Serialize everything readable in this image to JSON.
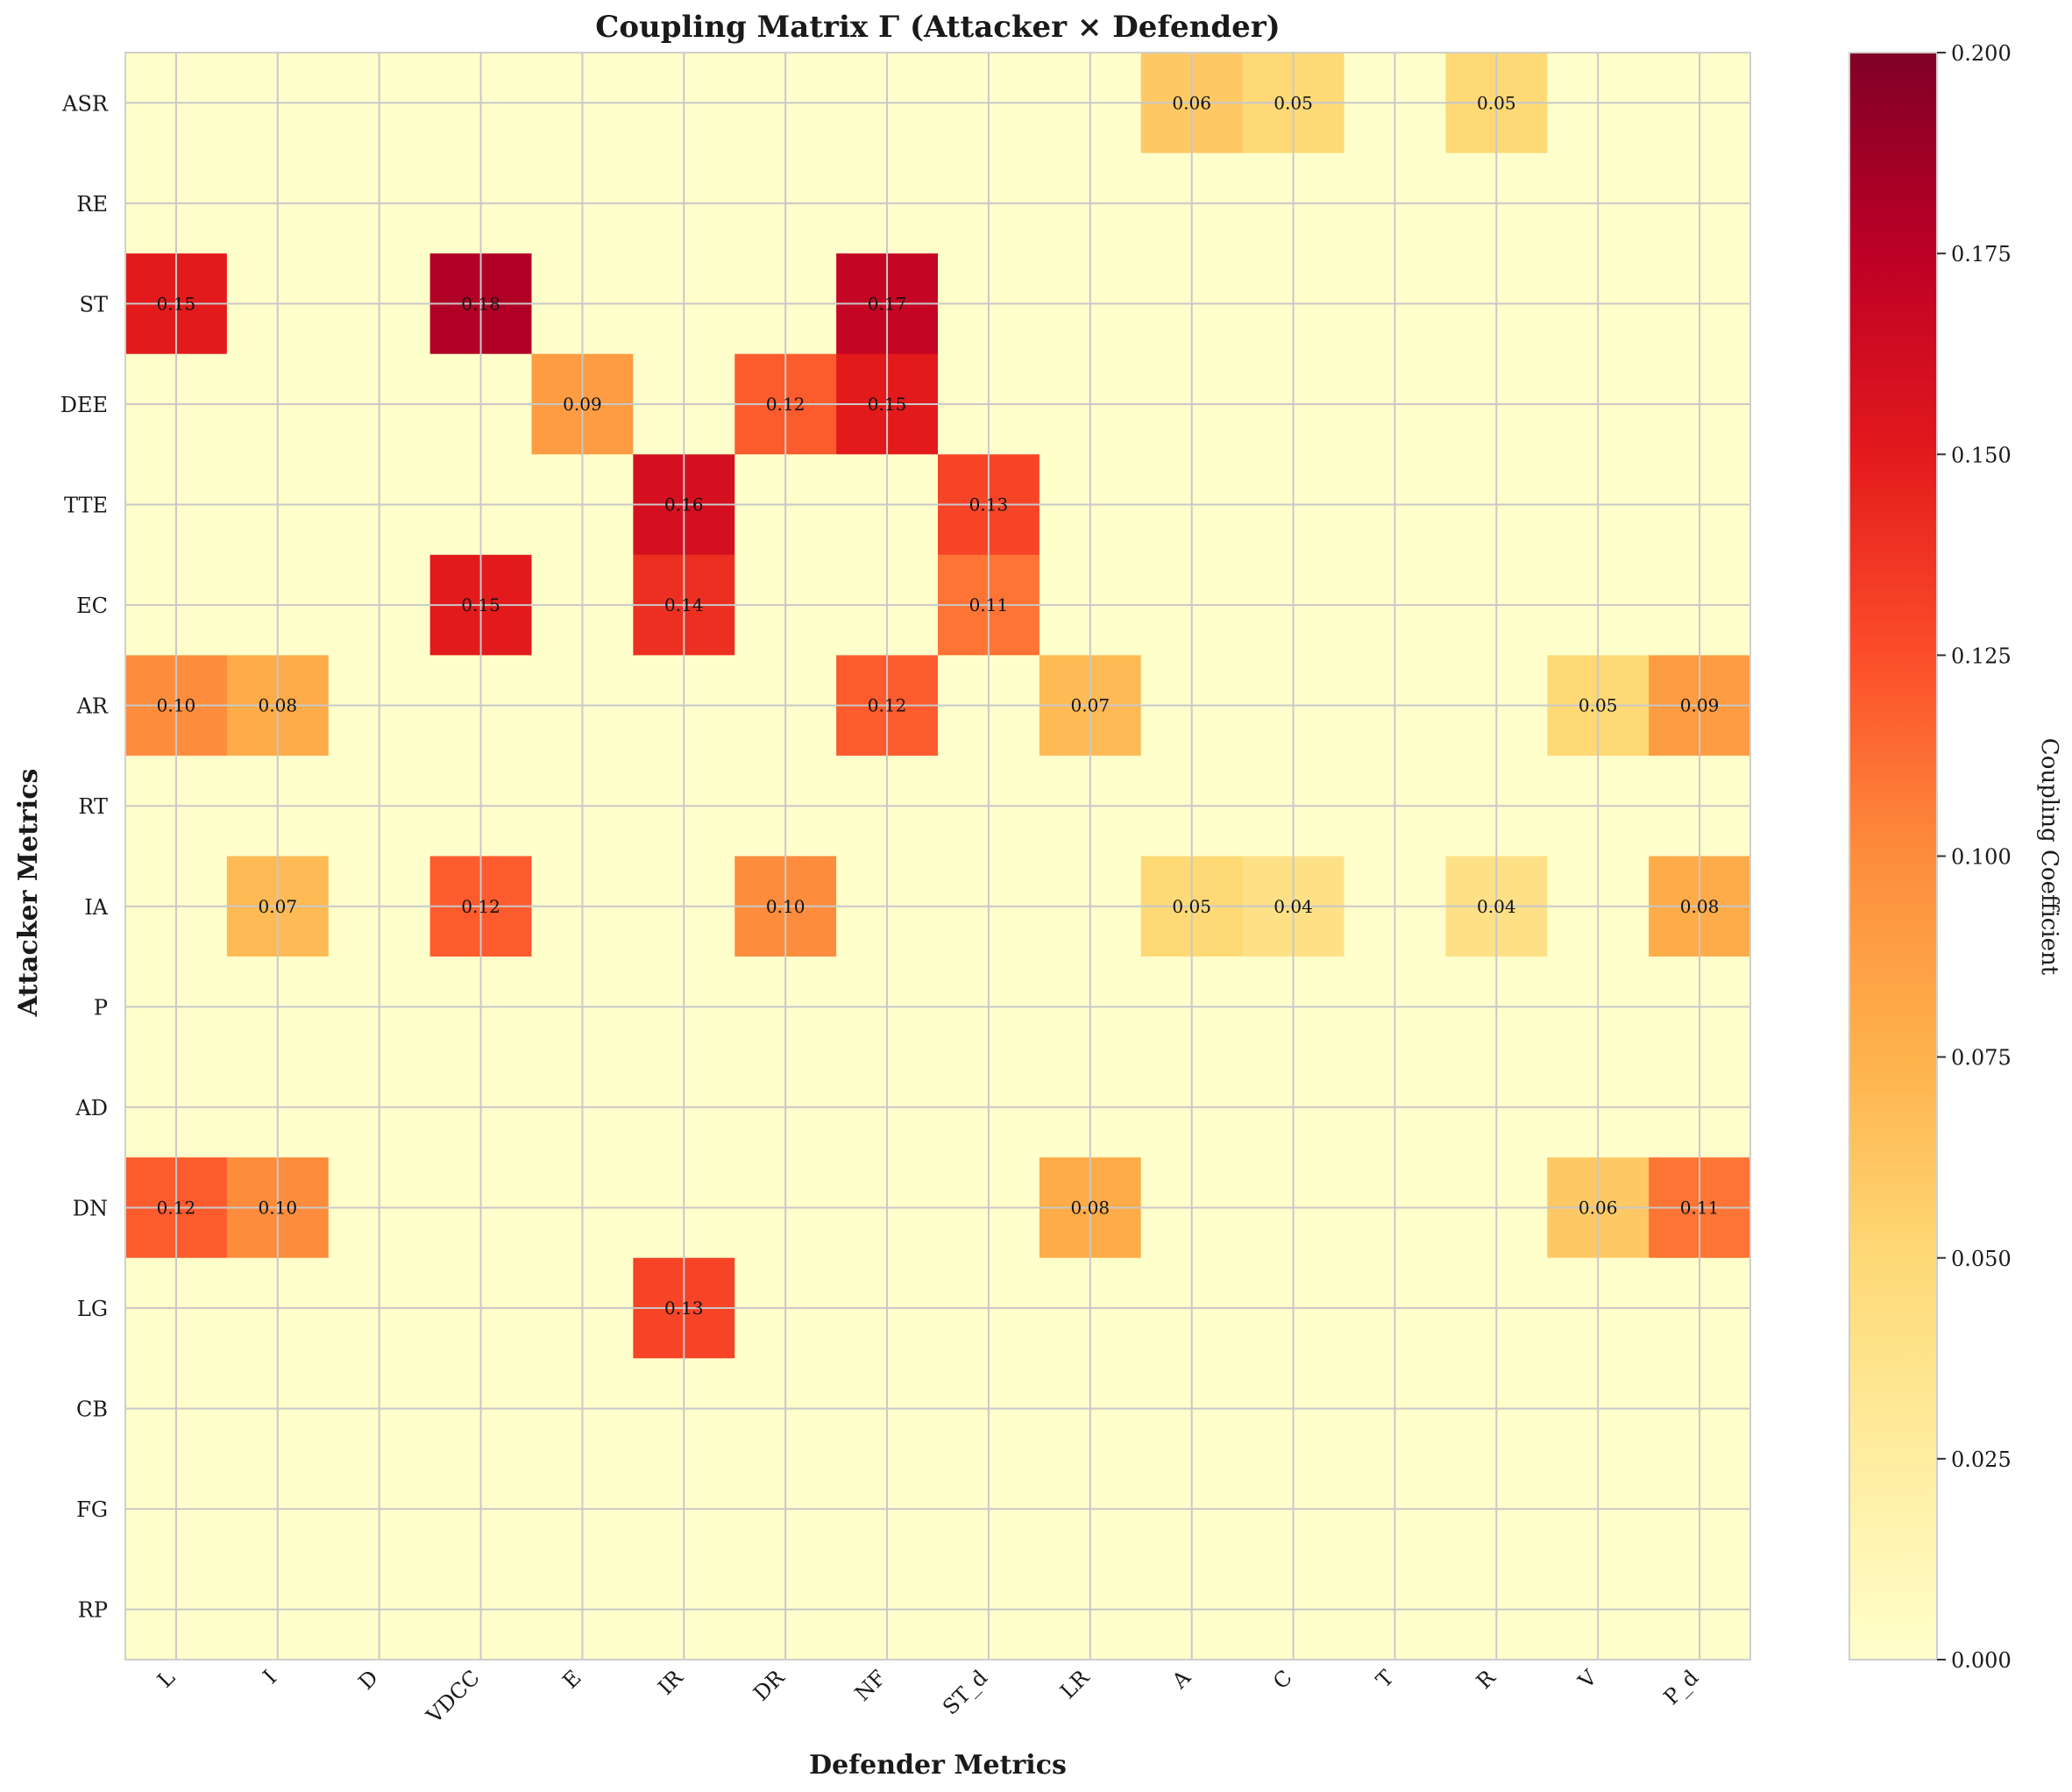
{
  "chart_data": {
    "type": "heatmap",
    "title": "Coupling Matrix Γ (Attacker × Defender)",
    "xlabel": "Defender Metrics",
    "ylabel": "Attacker Metrics",
    "x_categories": [
      "L",
      "I",
      "D",
      "VDCC",
      "E",
      "IR",
      "DR",
      "NF",
      "ST_d",
      "LR",
      "A",
      "C",
      "T",
      "R",
      "V",
      "P_d"
    ],
    "y_categories": [
      "ASR",
      "RE",
      "ST",
      "DEE",
      "TTE",
      "EC",
      "AR",
      "RT",
      "IA",
      "P",
      "AD",
      "DN",
      "LG",
      "CB",
      "FG",
      "RP"
    ],
    "values": [
      [
        0,
        0,
        0,
        0,
        0,
        0,
        0,
        0,
        0,
        0,
        0.06,
        0.05,
        0,
        0.05,
        0,
        0
      ],
      [
        0,
        0,
        0,
        0,
        0,
        0,
        0,
        0,
        0,
        0,
        0,
        0,
        0,
        0,
        0,
        0
      ],
      [
        0.15,
        0,
        0,
        0.18,
        0,
        0,
        0,
        0.17,
        0,
        0,
        0,
        0,
        0,
        0,
        0,
        0
      ],
      [
        0,
        0,
        0,
        0,
        0.09,
        0,
        0.12,
        0.15,
        0,
        0,
        0,
        0,
        0,
        0,
        0,
        0
      ],
      [
        0,
        0,
        0,
        0,
        0,
        0.16,
        0,
        0,
        0.13,
        0,
        0,
        0,
        0,
        0,
        0,
        0
      ],
      [
        0,
        0,
        0,
        0.15,
        0,
        0.14,
        0,
        0,
        0.11,
        0,
        0,
        0,
        0,
        0,
        0,
        0
      ],
      [
        0.1,
        0.08,
        0,
        0,
        0,
        0,
        0,
        0.12,
        0,
        0.07,
        0,
        0,
        0,
        0,
        0.05,
        0.09
      ],
      [
        0,
        0,
        0,
        0,
        0,
        0,
        0,
        0,
        0,
        0,
        0,
        0,
        0,
        0,
        0,
        0
      ],
      [
        0,
        0.07,
        0,
        0.12,
        0,
        0,
        0.1,
        0,
        0,
        0,
        0.05,
        0.04,
        0,
        0.04,
        0,
        0.08
      ],
      [
        0,
        0,
        0,
        0,
        0,
        0,
        0,
        0,
        0,
        0,
        0,
        0,
        0,
        0,
        0,
        0
      ],
      [
        0,
        0,
        0,
        0,
        0,
        0,
        0,
        0,
        0,
        0,
        0,
        0,
        0,
        0,
        0,
        0
      ],
      [
        0.12,
        0.1,
        0,
        0,
        0,
        0,
        0,
        0,
        0,
        0.08,
        0,
        0,
        0,
        0,
        0.06,
        0.11
      ],
      [
        0,
        0,
        0,
        0,
        0,
        0.13,
        0,
        0,
        0,
        0,
        0,
        0,
        0,
        0,
        0,
        0
      ],
      [
        0,
        0,
        0,
        0,
        0,
        0,
        0,
        0,
        0,
        0,
        0,
        0,
        0,
        0,
        0,
        0
      ],
      [
        0,
        0,
        0,
        0,
        0,
        0,
        0,
        0,
        0,
        0,
        0,
        0,
        0,
        0,
        0,
        0
      ],
      [
        0,
        0,
        0,
        0,
        0,
        0,
        0,
        0,
        0,
        0,
        0,
        0,
        0,
        0,
        0,
        0
      ]
    ],
    "annotation_format": "2 decimals, shown for nonzero cells",
    "colormap": "YlOrRd",
    "colormap_stops": [
      "#ffffcc",
      "#ffeda0",
      "#fed976",
      "#feb24c",
      "#fd8d3c",
      "#fc4e2a",
      "#e31a1c",
      "#bd0026",
      "#800026"
    ],
    "vmin": 0,
    "vmax": 0.2,
    "grid": true,
    "colorbar": {
      "label": "Coupling Coefficient",
      "ticks": [
        0,
        0.025,
        0.05,
        0.075,
        0.1,
        0.125,
        0.15,
        0.175,
        0.2
      ],
      "tick_labels": [
        "0.000",
        "0.025",
        "0.050",
        "0.075",
        "0.100",
        "0.125",
        "0.150",
        "0.175",
        "0.200"
      ]
    }
  }
}
